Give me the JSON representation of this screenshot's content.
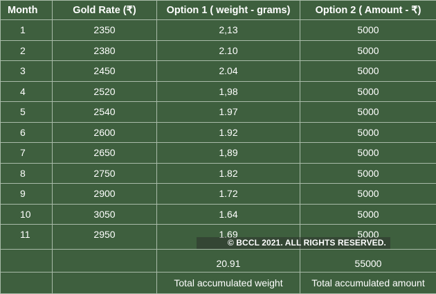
{
  "table": {
    "headers": [
      "Month",
      "Gold Rate (₹)",
      "Option 1 ( weight - grams)",
      "Option 2 ( Amount - ₹)"
    ],
    "rows": [
      [
        "1",
        "2350",
        "2,13",
        "5000"
      ],
      [
        "2",
        "2380",
        "2.10",
        "5000"
      ],
      [
        "3",
        "2450",
        "2.04",
        "5000"
      ],
      [
        "4",
        "2520",
        "1,98",
        "5000"
      ],
      [
        "5",
        "2540",
        "1.97",
        "5000"
      ],
      [
        "6",
        "2600",
        "1.92",
        "5000"
      ],
      [
        "7",
        "2650",
        "1,89",
        "5000"
      ],
      [
        "8",
        "2750",
        "1.82",
        "5000"
      ],
      [
        "9",
        "2900",
        "1.72",
        "5000"
      ],
      [
        "10",
        "3050",
        "1.64",
        "5000"
      ],
      [
        "11",
        "2950",
        "1.69",
        "5000"
      ]
    ],
    "totals": {
      "weight": "20.91",
      "amount": "55000"
    },
    "total_labels": {
      "weight": "Total accumulated weight",
      "amount": "Total accumulated amount"
    }
  },
  "watermark": "© BCCL 2021. ALL RIGHTS RESERVED.",
  "colors": {
    "background": "#3e5f3e",
    "grid": "#a9bba9",
    "text": "#ffffff"
  }
}
